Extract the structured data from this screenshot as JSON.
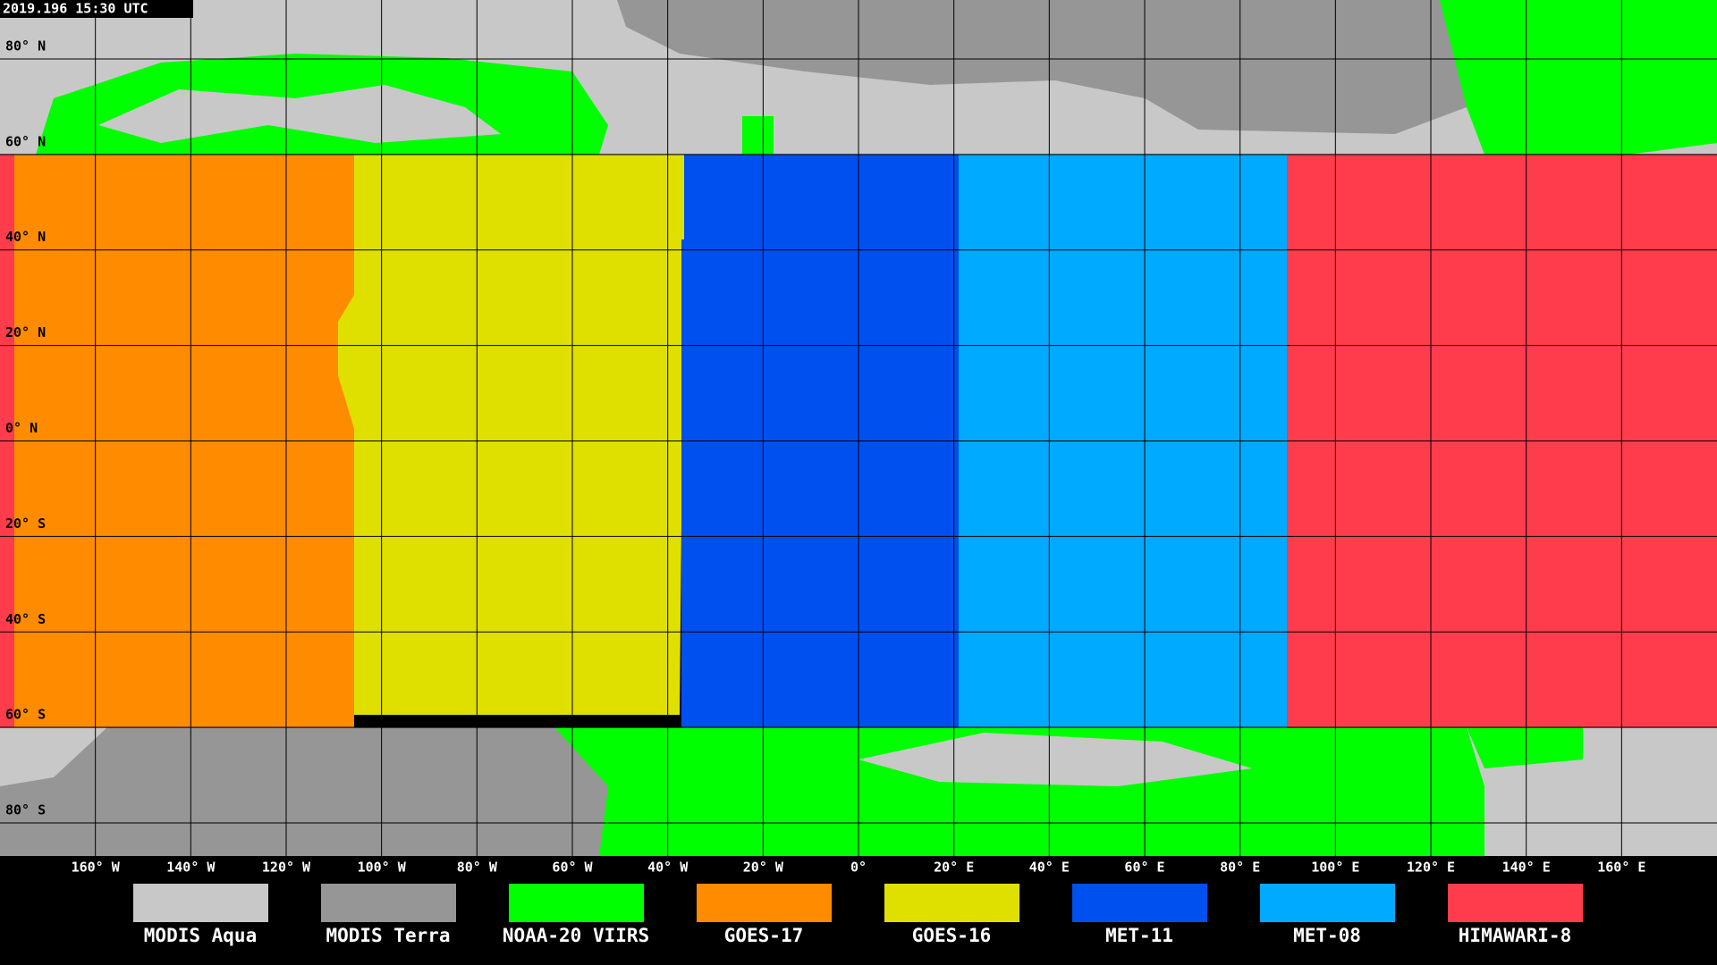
{
  "timestamp": "2019.196 15:30 UTC",
  "lat_ticks": [
    {
      "value": 80,
      "label": "80° N"
    },
    {
      "value": 60,
      "label": "60° N"
    },
    {
      "value": 40,
      "label": "40° N"
    },
    {
      "value": 20,
      "label": "20° N"
    },
    {
      "value": 0,
      "label": "0° N"
    },
    {
      "value": -20,
      "label": "20° S"
    },
    {
      "value": -40,
      "label": "40° S"
    },
    {
      "value": -60,
      "label": "60° S"
    },
    {
      "value": -80,
      "label": "80° S"
    }
  ],
  "lon_ticks": [
    {
      "value": -160,
      "label": "160° W"
    },
    {
      "value": -140,
      "label": "140° W"
    },
    {
      "value": -120,
      "label": "120° W"
    },
    {
      "value": -100,
      "label": "100° W"
    },
    {
      "value": -80,
      "label": "80° W"
    },
    {
      "value": -60,
      "label": "60° W"
    },
    {
      "value": -40,
      "label": "40° W"
    },
    {
      "value": -20,
      "label": "20° W"
    },
    {
      "value": 0,
      "label": "0°"
    },
    {
      "value": 20,
      "label": "20° E"
    },
    {
      "value": 40,
      "label": "40° E"
    },
    {
      "value": 60,
      "label": "60° E"
    },
    {
      "value": 80,
      "label": "80° E"
    },
    {
      "value": 100,
      "label": "100° E"
    },
    {
      "value": 120,
      "label": "120° E"
    },
    {
      "value": 140,
      "label": "140° E"
    },
    {
      "value": 160,
      "label": "160° E"
    }
  ],
  "legend": [
    {
      "name": "MODIS Aqua",
      "color": "#c8c8c8"
    },
    {
      "name": "MODIS Terra",
      "color": "#969696"
    },
    {
      "name": "NOAA-20 VIIRS",
      "color": "#00ff00"
    },
    {
      "name": "GOES-17",
      "color": "#ff8c00"
    },
    {
      "name": "GOES-16",
      "color": "#e0e000"
    },
    {
      "name": "MET-11",
      "color": "#0050f0"
    },
    {
      "name": "MET-08",
      "color": "#00aaff"
    },
    {
      "name": "HIMAWARI-8",
      "color": "#ff3c4c"
    }
  ]
}
